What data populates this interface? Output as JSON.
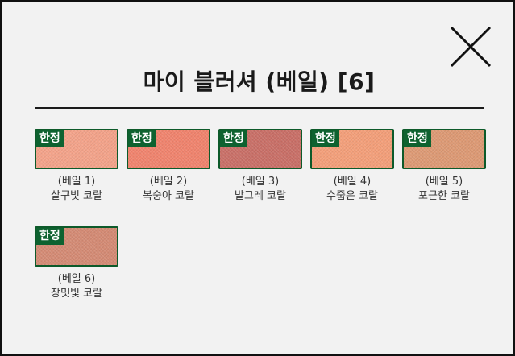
{
  "title": "마이 블러셔 (베일) [6]",
  "badge_label": "한정",
  "items": [
    {
      "variant": "(베일 1)",
      "name": "살구빛 코랄",
      "color": "#f3a38a"
    },
    {
      "variant": "(베일 2)",
      "name": "복숭아 코랄",
      "color": "#f0846e"
    },
    {
      "variant": "(베일 3)",
      "name": "발그레 코랄",
      "color": "#c97068"
    },
    {
      "variant": "(베일 4)",
      "name": "수줍은 코랄",
      "color": "#f39f7a"
    },
    {
      "variant": "(베일 5)",
      "name": "포근한 코랄",
      "color": "#dd9a75"
    },
    {
      "variant": "(베일 6)",
      "name": "장밋빛 코랄",
      "color": "#d48b75"
    }
  ],
  "colors": {
    "badge": "#0e6230",
    "border": "#0d5a2a",
    "divider": "#1b1b1b"
  },
  "icons": {
    "close": "close-icon"
  }
}
